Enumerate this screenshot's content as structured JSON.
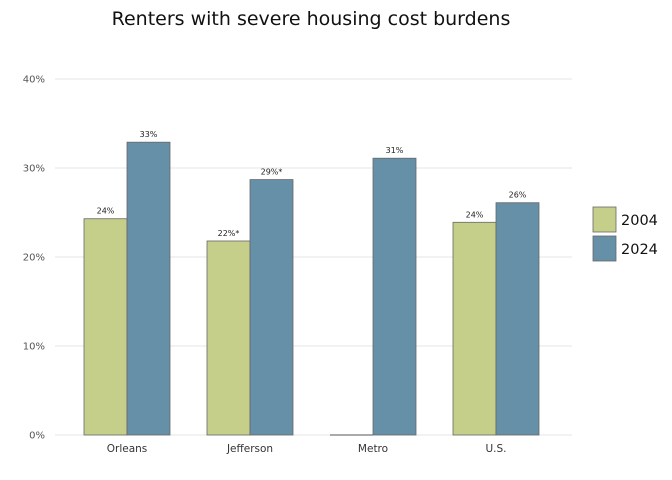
{
  "chart_data": {
    "type": "bar",
    "title": "Renters with severe housing cost burdens",
    "xlabel": "",
    "ylabel": "",
    "categories": [
      "Orleans",
      "Jefferson",
      "Metro",
      "U.S."
    ],
    "series": [
      {
        "name": "2004",
        "color": "#c5cf8a",
        "values": [
          24.3,
          21.8,
          0,
          23.9
        ],
        "labels": [
          "24%",
          "22%*",
          "",
          "24%"
        ]
      },
      {
        "name": "2024",
        "color": "#6690a8",
        "values": [
          32.9,
          28.7,
          31.1,
          26.1
        ],
        "labels": [
          "33%",
          "29%*",
          "31%",
          "26%"
        ]
      }
    ],
    "ylim": [
      0,
      40
    ],
    "yticks": [
      0,
      10,
      20,
      30,
      40
    ],
    "ytick_labels": [
      "0%",
      "10%",
      "20%",
      "30%",
      "40%"
    ],
    "grid": true,
    "legend_position": "right"
  }
}
